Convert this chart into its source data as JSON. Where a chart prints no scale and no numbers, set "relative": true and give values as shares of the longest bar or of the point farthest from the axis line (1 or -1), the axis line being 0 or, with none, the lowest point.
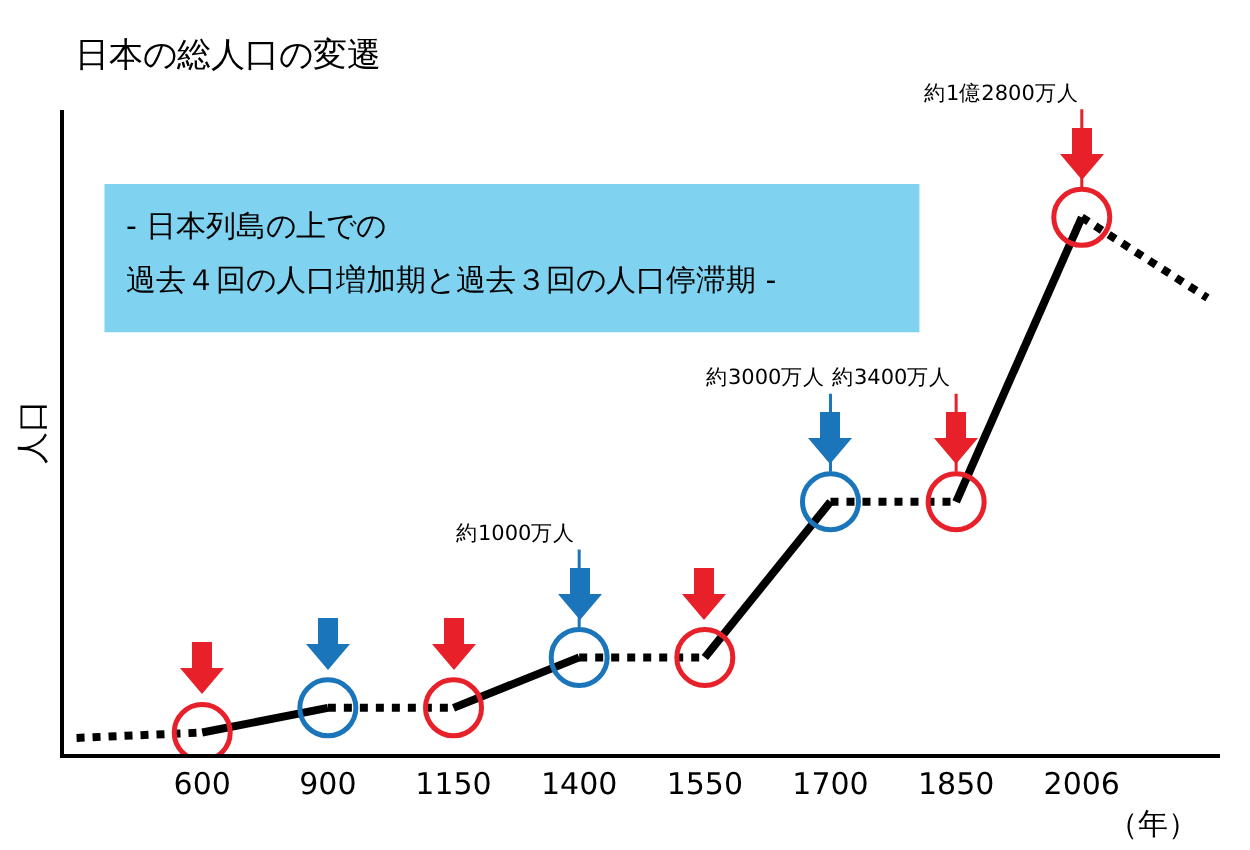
{
  "chart_data": {
    "type": "line",
    "relative": true,
    "title": "日本の総人口の変遷",
    "ylabel": "人口",
    "xlabel": "（年）",
    "grid": false,
    "categories": [
      null,
      "600",
      "900",
      "1150",
      "1400",
      "1550",
      "1700",
      "1850",
      "2006",
      null
    ],
    "series": [
      {
        "color": "#000000",
        "line_style": "dotted",
        "values": [
          0.03,
          0.04,
          null,
          null,
          null,
          null,
          null,
          null,
          null,
          null
        ]
      },
      {
        "color": "#000000",
        "line_style": "solid",
        "values": [
          null,
          0.04,
          0.086,
          null,
          null,
          null,
          null,
          null,
          null,
          null
        ]
      },
      {
        "color": "#000000",
        "line_style": "dotted",
        "values": [
          null,
          null,
          0.086,
          0.086,
          null,
          null,
          null,
          null,
          null,
          null
        ]
      },
      {
        "color": "#000000",
        "line_style": "solid",
        "values": [
          null,
          null,
          null,
          0.086,
          0.18,
          null,
          null,
          null,
          null,
          null
        ]
      },
      {
        "color": "#000000",
        "line_style": "dotted",
        "values": [
          null,
          null,
          null,
          null,
          0.18,
          0.18,
          null,
          null,
          null,
          null
        ]
      },
      {
        "color": "#000000",
        "line_style": "solid",
        "values": [
          null,
          null,
          null,
          null,
          null,
          0.18,
          0.47,
          null,
          null,
          null
        ]
      },
      {
        "color": "#000000",
        "line_style": "dotted",
        "values": [
          null,
          null,
          null,
          null,
          null,
          null,
          0.47,
          0.47,
          null,
          null
        ]
      },
      {
        "color": "#000000",
        "line_style": "solid",
        "values": [
          null,
          null,
          null,
          null,
          null,
          null,
          null,
          0.47,
          1,
          null
        ]
      },
      {
        "color": "#000000",
        "line_style": "dotted",
        "values": [
          null,
          null,
          null,
          null,
          null,
          null,
          null,
          null,
          1,
          0.85
        ]
      },
      {
        "type": "scatter",
        "marker": "circle",
        "colors": [
          null,
          "#e8202a",
          "#1a75bb",
          "#e8202a",
          "#1a75bb",
          "#e8202a",
          "#1a75bb",
          "#e8202a",
          "#e8202a",
          null
        ],
        "values": [
          null,
          0.04,
          0.086,
          0.086,
          0.18,
          0.18,
          0.47,
          0.47,
          1,
          null
        ]
      }
    ],
    "annotations": [
      "- 日本列島の上での",
      "過去４回の人口増加期と過去３回の人口停滞期 -",
      {
        "text": "約1000万人",
        "x": "1400",
        "y": 0.18
      },
      {
        "text": "約3000万人",
        "x": "1700",
        "y": 0.47
      },
      {
        "text": "約3400万人",
        "x": "1850",
        "y": 0.47
      },
      {
        "text": "約1億2800万人",
        "x": "2006",
        "y": 1
      }
    ]
  }
}
